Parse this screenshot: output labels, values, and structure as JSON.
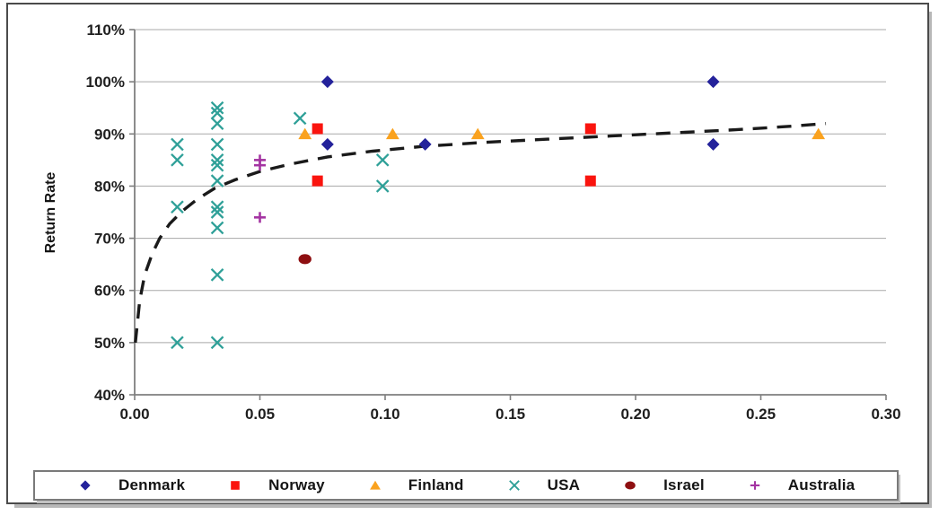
{
  "chart_data": {
    "type": "scatter",
    "title": "",
    "xlabel": "",
    "ylabel": "Return Rate",
    "xlim": [
      0,
      0.3
    ],
    "ylim": [
      40,
      110
    ],
    "x_ticks": [
      "0.00",
      "0.05",
      "0.10",
      "0.15",
      "0.20",
      "0.25",
      "0.30"
    ],
    "y_ticks": [
      "110%",
      "100%",
      "90%",
      "80%",
      "70%",
      "60%",
      "50%",
      "40%"
    ],
    "grid": "horizontal",
    "grid_color": "#a8a8a8",
    "axis_color": "#7f7f7f",
    "tick_label_color": "#1f1f1f",
    "legend_position": "bottom",
    "series": [
      {
        "name": "Denmark",
        "marker": "diamond",
        "color": "#24229b",
        "points": [
          [
            0.077,
            100
          ],
          [
            0.077,
            88
          ],
          [
            0.116,
            88
          ],
          [
            0.231,
            100
          ],
          [
            0.231,
            88
          ]
        ]
      },
      {
        "name": "Norway",
        "marker": "square",
        "color": "#fa140e",
        "points": [
          [
            0.073,
            91
          ],
          [
            0.073,
            81
          ],
          [
            0.182,
            91
          ],
          [
            0.182,
            81
          ]
        ]
      },
      {
        "name": "Finland",
        "marker": "triangle",
        "color": "#faa21e",
        "points": [
          [
            0.068,
            90
          ],
          [
            0.103,
            90
          ],
          [
            0.137,
            90
          ],
          [
            0.273,
            90
          ]
        ]
      },
      {
        "name": "USA",
        "marker": "x",
        "color": "#2fa098",
        "points": [
          [
            0.017,
            88
          ],
          [
            0.017,
            85
          ],
          [
            0.017,
            76
          ],
          [
            0.017,
            50
          ],
          [
            0.033,
            95
          ],
          [
            0.033,
            94
          ],
          [
            0.033,
            92
          ],
          [
            0.033,
            88
          ],
          [
            0.033,
            85
          ],
          [
            0.033,
            84
          ],
          [
            0.033,
            81
          ],
          [
            0.033,
            76
          ],
          [
            0.033,
            75
          ],
          [
            0.033,
            72
          ],
          [
            0.033,
            63
          ],
          [
            0.033,
            50
          ],
          [
            0.066,
            93
          ],
          [
            0.099,
            85
          ],
          [
            0.099,
            80
          ]
        ]
      },
      {
        "name": "Israel",
        "marker": "circle",
        "color": "#8e0f11",
        "points": [
          [
            0.068,
            66
          ]
        ]
      },
      {
        "name": "Australia",
        "marker": "plus",
        "color": "#a434a2",
        "points": [
          [
            0.05,
            85
          ],
          [
            0.05,
            84
          ],
          [
            0.05,
            74
          ]
        ]
      }
    ],
    "trend": {
      "style": "dashed",
      "color": "#1a1a1a",
      "points": [
        [
          0.0003,
          50
        ],
        [
          0.002,
          58
        ],
        [
          0.004,
          63
        ],
        [
          0.007,
          67
        ],
        [
          0.01,
          70
        ],
        [
          0.014,
          72.8
        ],
        [
          0.019,
          75.2
        ],
        [
          0.025,
          77.5
        ],
        [
          0.032,
          79.6
        ],
        [
          0.04,
          81.2
        ],
        [
          0.05,
          82.8
        ],
        [
          0.062,
          84.2
        ],
        [
          0.077,
          85.6
        ],
        [
          0.095,
          86.7
        ],
        [
          0.115,
          87.6
        ],
        [
          0.14,
          88.4
        ],
        [
          0.165,
          89.0
        ],
        [
          0.19,
          89.6
        ],
        [
          0.215,
          90.2
        ],
        [
          0.24,
          90.8
        ],
        [
          0.26,
          91.4
        ],
        [
          0.276,
          92.0
        ]
      ]
    }
  }
}
